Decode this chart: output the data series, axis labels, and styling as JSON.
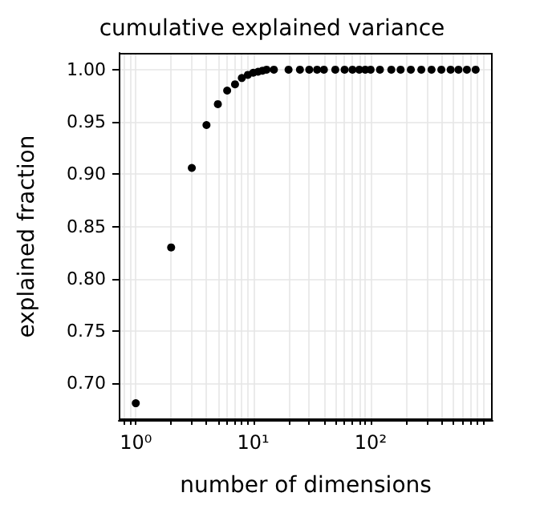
{
  "chart_data": {
    "type": "scatter",
    "title": "cumulative explained variance",
    "xlabel": "number of dimensions",
    "ylabel": "explained fraction",
    "x": [
      1,
      2,
      3,
      4,
      5,
      6,
      7,
      8,
      9,
      10,
      11,
      12,
      13,
      15,
      20,
      25,
      30,
      35,
      40,
      50,
      60,
      70,
      80,
      90,
      100,
      120,
      150,
      180,
      220,
      270,
      330,
      400,
      480,
      560,
      660,
      784
    ],
    "values": [
      0.681,
      0.83,
      0.906,
      0.947,
      0.967,
      0.98,
      0.986,
      0.992,
      0.995,
      0.997,
      0.998,
      0.999,
      1,
      1,
      1,
      1,
      1,
      1,
      1,
      1,
      1,
      1,
      1,
      1,
      1,
      1,
      1,
      1,
      1,
      1,
      1,
      1,
      1,
      1,
      1,
      1
    ],
    "color": "#000000",
    "marker": "circle",
    "log": "x",
    "grid": true,
    "xlim": [
      0.716,
      1094
    ],
    "xticks": [
      {
        "value": 0.8,
        "label": null
      },
      {
        "value": 0.9,
        "label": null
      },
      {
        "value": 1,
        "label": "10⁰"
      },
      {
        "value": 2,
        "label": null
      },
      {
        "value": 3,
        "label": null
      },
      {
        "value": 4,
        "label": null
      },
      {
        "value": 5,
        "label": null
      },
      {
        "value": 6,
        "label": null
      },
      {
        "value": 7,
        "label": null
      },
      {
        "value": 8,
        "label": null
      },
      {
        "value": 9,
        "label": null
      },
      {
        "value": 10,
        "label": "10¹"
      },
      {
        "value": 20,
        "label": null
      },
      {
        "value": 30,
        "label": null
      },
      {
        "value": 40,
        "label": null
      },
      {
        "value": 50,
        "label": null
      },
      {
        "value": 60,
        "label": null
      },
      {
        "value": 70,
        "label": null
      },
      {
        "value": 80,
        "label": null
      },
      {
        "value": 90,
        "label": null
      },
      {
        "value": 100,
        "label": "10²"
      },
      {
        "value": 200,
        "label": null
      },
      {
        "value": 300,
        "label": null
      },
      {
        "value": 400,
        "label": null
      },
      {
        "value": 500,
        "label": null
      },
      {
        "value": 600,
        "label": null
      },
      {
        "value": 700,
        "label": null
      },
      {
        "value": 800,
        "label": null
      },
      {
        "value": 900,
        "label": null
      }
    ],
    "ylim": [
      0.665,
      1.016
    ],
    "yticks": [
      {
        "value": 0.7,
        "label": "0.70"
      },
      {
        "value": 0.75,
        "label": "0.75"
      },
      {
        "value": 0.8,
        "label": "0.80"
      },
      {
        "value": 0.85,
        "label": "0.85"
      },
      {
        "value": 0.9,
        "label": "0.90"
      },
      {
        "value": 0.95,
        "label": "0.95"
      },
      {
        "value": 1,
        "label": "1.00"
      }
    ]
  }
}
